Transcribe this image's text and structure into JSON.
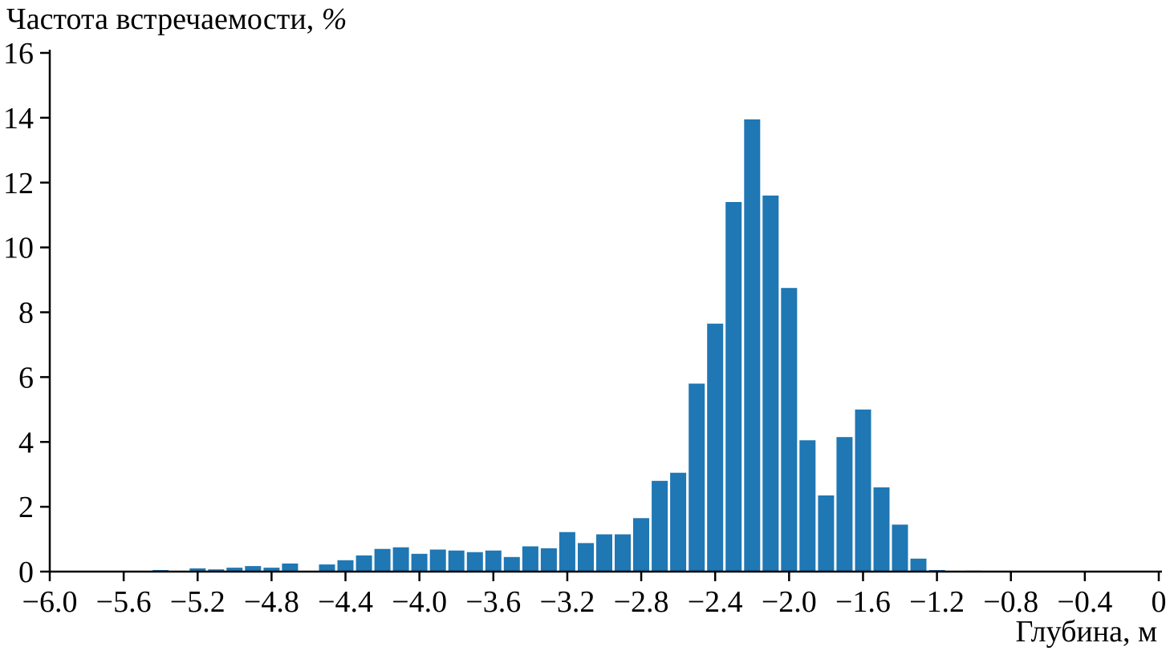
{
  "chart_data": {
    "type": "bar",
    "title": "Частота встречаемости, %",
    "title_main": "Частота встречаемости, ",
    "title_unit": "%",
    "xlabel": "Глубина, м",
    "ylabel": "Частота встречаемости, %",
    "bar_color": "#1f77b4",
    "axis_color": "#000000",
    "grid": false,
    "legend": "none",
    "xlim": [
      -6.0,
      0.0
    ],
    "ylim": [
      0,
      16
    ],
    "bin_width": 0.1,
    "x_ticks": [
      -6.0,
      -5.6,
      -5.2,
      -4.8,
      -4.4,
      -4.0,
      -3.6,
      -3.2,
      -2.8,
      -2.4,
      -2.0,
      -1.6,
      -1.2,
      -0.8,
      -0.4,
      0
    ],
    "x_tick_labels": [
      "−6.0",
      "−5.6",
      "−5.2",
      "−4.8",
      "−4.4",
      "−4.0",
      "−3.6",
      "−3.2",
      "−2.8",
      "−2.4",
      "−2.0",
      "−1.6",
      "−1.2",
      "−0.8",
      "−0.4",
      "0"
    ],
    "y_ticks": [
      0,
      2,
      4,
      6,
      8,
      10,
      12,
      14,
      16
    ],
    "y_tick_labels": [
      "0",
      "2",
      "4",
      "6",
      "8",
      "10",
      "12",
      "14",
      "16"
    ],
    "bin_centers": [
      -5.4,
      -5.3,
      -5.2,
      -5.1,
      -5.0,
      -4.9,
      -4.8,
      -4.7,
      -4.6,
      -4.5,
      -4.4,
      -4.3,
      -4.2,
      -4.1,
      -4.0,
      -3.9,
      -3.8,
      -3.7,
      -3.6,
      -3.5,
      -3.4,
      -3.3,
      -3.2,
      -3.1,
      -3.0,
      -2.9,
      -2.8,
      -2.7,
      -2.6,
      -2.5,
      -2.4,
      -2.3,
      -2.2,
      -2.1,
      -2.0,
      -1.9,
      -1.8,
      -1.7,
      -1.6,
      -1.5,
      -1.4,
      -1.3,
      -1.2,
      -1.1,
      -1.0
    ],
    "values": [
      0.05,
      0.02,
      0.1,
      0.07,
      0.12,
      0.17,
      0.12,
      0.25,
      0.0,
      0.22,
      0.35,
      0.5,
      0.7,
      0.75,
      0.55,
      0.68,
      0.65,
      0.6,
      0.65,
      0.45,
      0.78,
      0.72,
      1.22,
      0.88,
      1.15,
      1.15,
      1.65,
      2.8,
      3.05,
      5.8,
      7.65,
      11.4,
      13.95,
      11.6,
      8.75,
      4.05,
      2.35,
      4.15,
      5.0,
      2.6,
      1.45,
      0.4,
      0.05,
      0.02,
      0.03
    ]
  }
}
